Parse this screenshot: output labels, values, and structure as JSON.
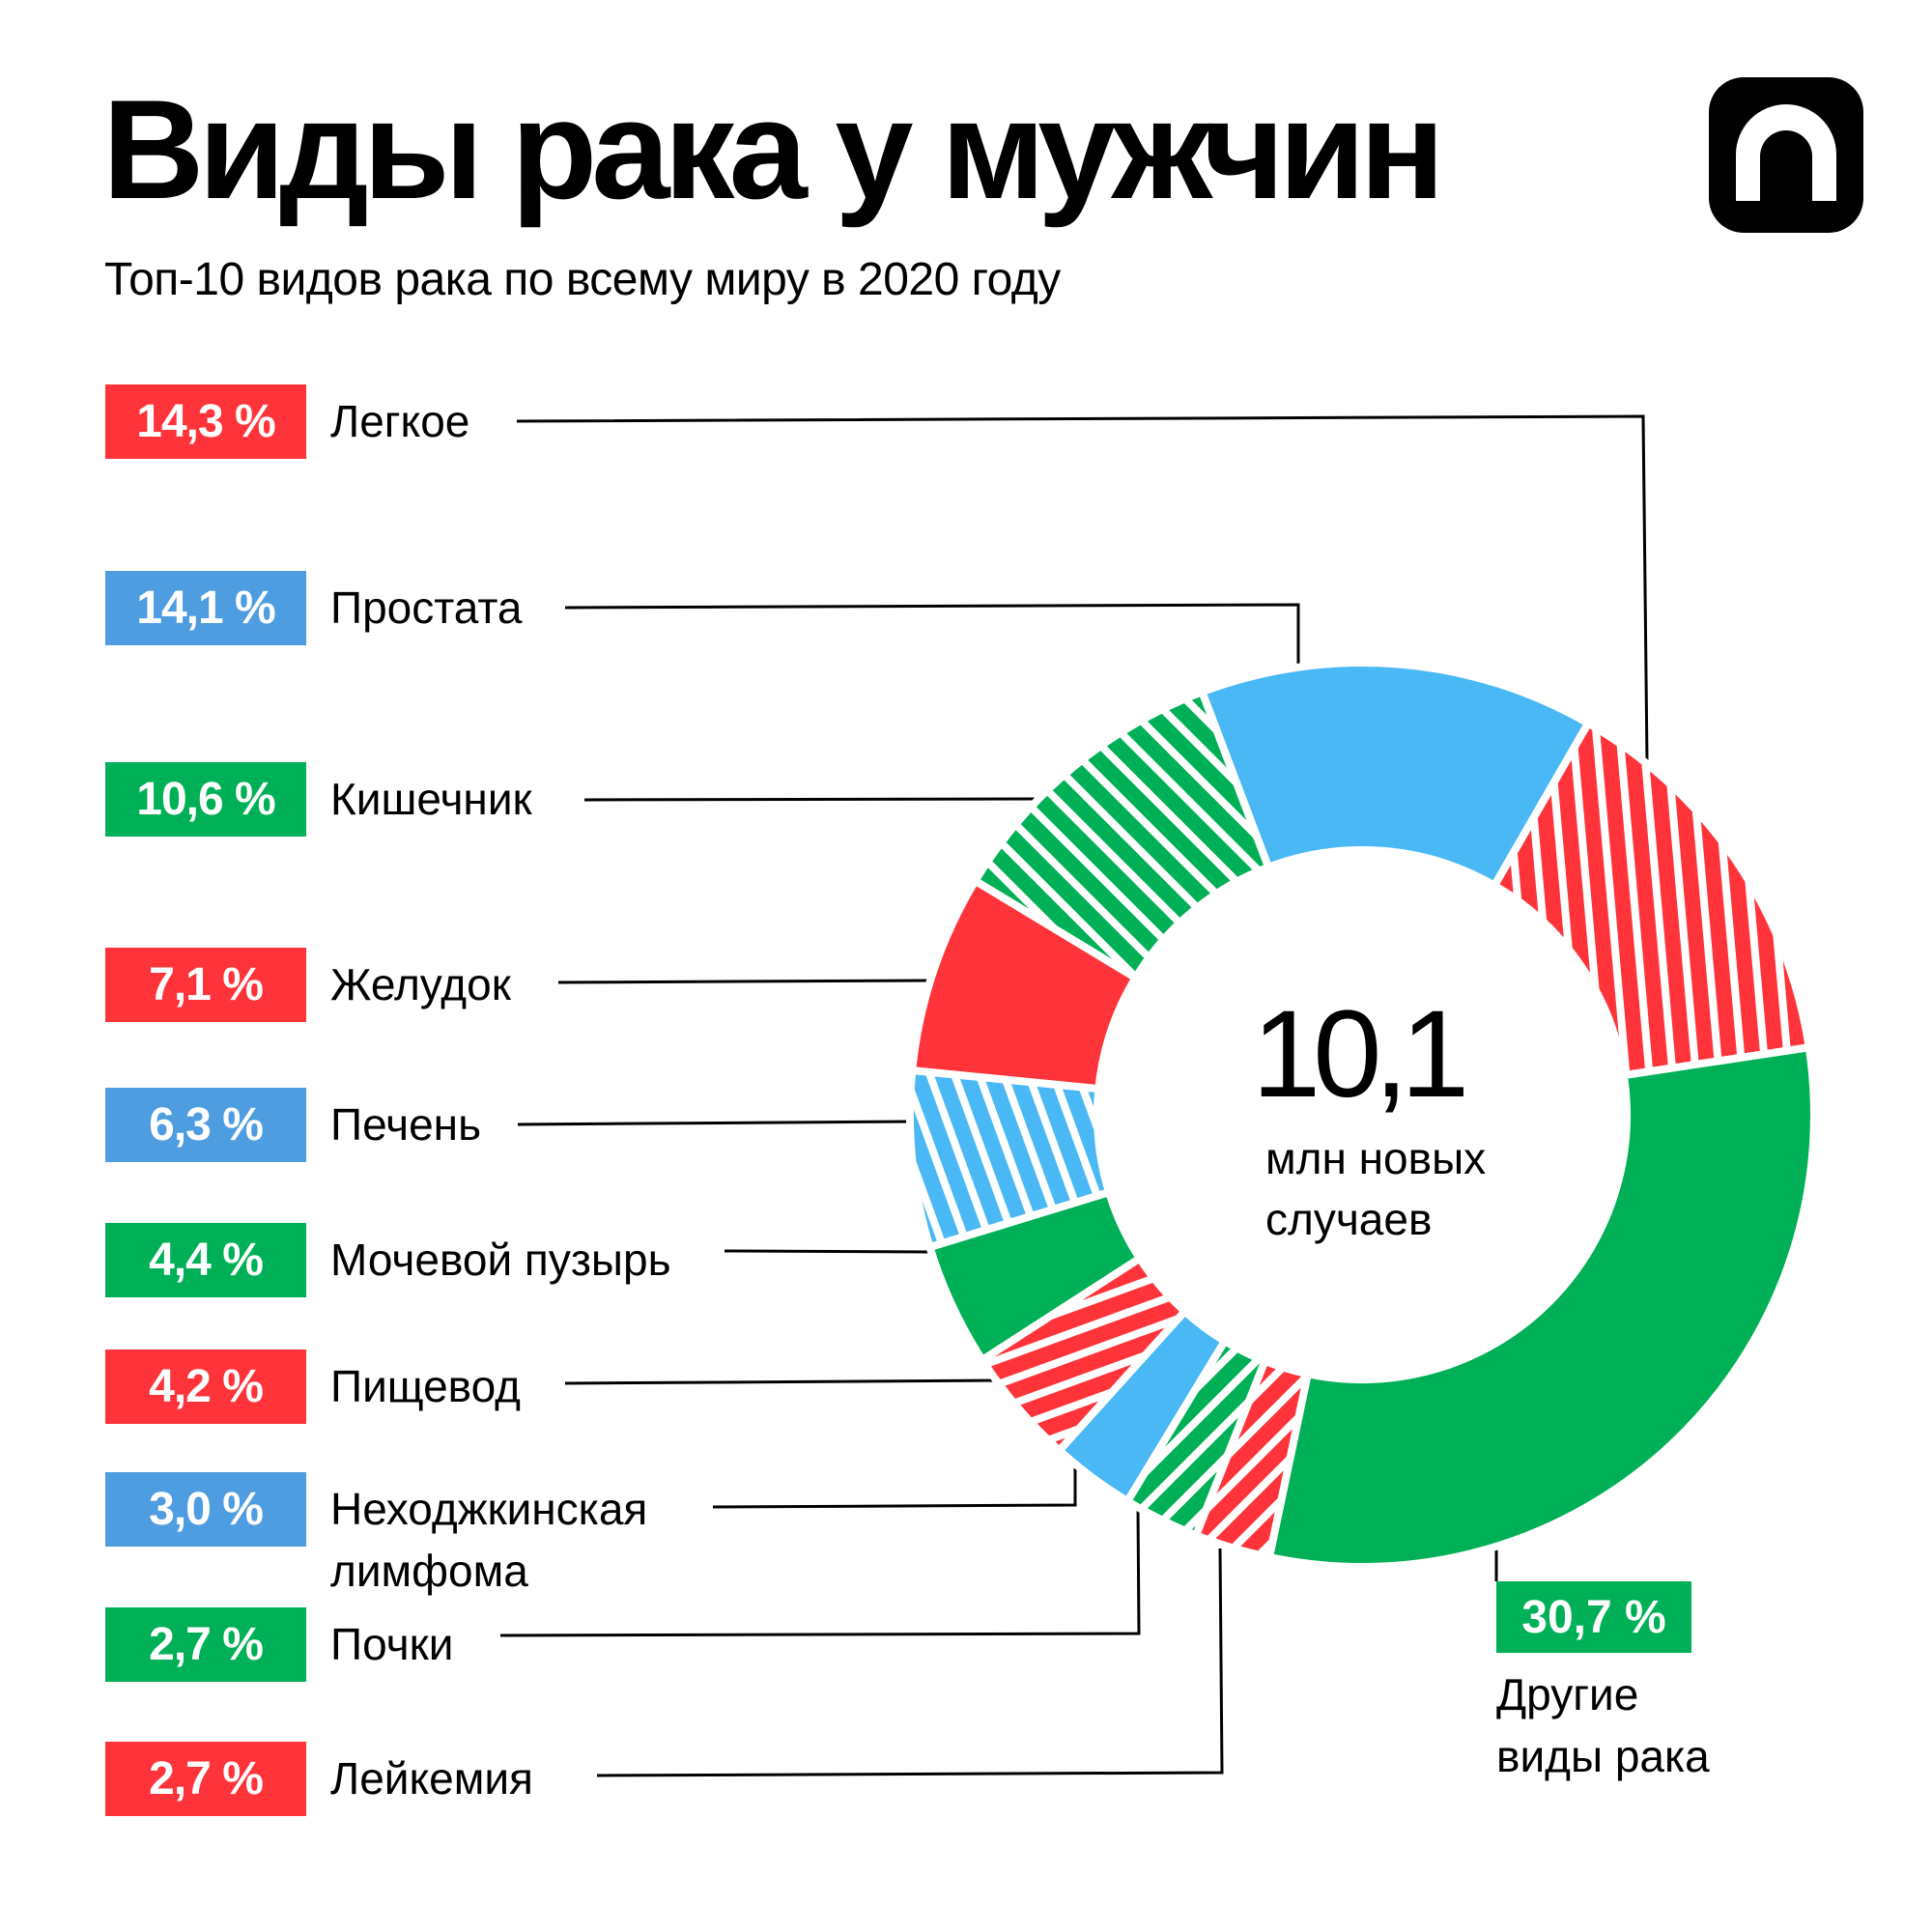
{
  "header": {
    "title": "Виды рака у мужчин",
    "subtitle": "Топ-10 видов рака по всему миру в 2020 году",
    "logo_icon": "arch-n-logo-icon"
  },
  "colors": {
    "red": "#ff343a",
    "blue": "#4ab8f5",
    "badge_blue": "#4f9de1",
    "green": "#00b057"
  },
  "center": {
    "value": "10,1",
    "caption_line1": "млн новых",
    "caption_line2": "случаев"
  },
  "legend": [
    {
      "badge": "14,3 %",
      "label": "Легкое",
      "color": "#ff343a"
    },
    {
      "badge": "14,1 %",
      "label": "Простата",
      "color": "#4f9de1"
    },
    {
      "badge": "10,6 %",
      "label": "Кишечник",
      "color": "#00b057"
    },
    {
      "badge": "7,1 %",
      "label": "Желудок",
      "color": "#ff343a"
    },
    {
      "badge": "6,3 %",
      "label": "Печень",
      "color": "#4f9de1"
    },
    {
      "badge": "4,4 %",
      "label": "Мочевой пузырь",
      "color": "#00b057"
    },
    {
      "badge": "4,2 %",
      "label": "Пищевод",
      "color": "#ff343a"
    },
    {
      "badge": "3,0 %",
      "label": "Неходжкинская лимфома",
      "label_line1": "Неходжкинская",
      "label_line2": "лимфома",
      "color": "#4f9de1"
    },
    {
      "badge": "2,7 %",
      "label": "Почки",
      "color": "#00b057"
    },
    {
      "badge": "2,7 %",
      "label": "Лейкемия",
      "color": "#ff343a"
    }
  ],
  "others": {
    "badge": "30,7 %",
    "label_line1": "Другие",
    "label_line2": "виды рака"
  },
  "chart_data": {
    "type": "pie",
    "variant": "donut",
    "title": "Виды рака у мужчин",
    "subtitle": "Топ-10 видов рака по всему миру в 2020 году",
    "center_text": "10,1 млн новых случаев",
    "order": "clockwise, starting at about 1 o'clock",
    "categories": [
      "Легкое",
      "Другие виды рака",
      "Лейкемия",
      "Почки",
      "Неходжкинская лимфома",
      "Пищевод",
      "Мочевой пузырь",
      "Печень",
      "Желудок",
      "Кишечник",
      "Простата"
    ],
    "values": [
      14.3,
      30.7,
      2.7,
      2.7,
      3.0,
      4.2,
      4.4,
      6.3,
      7.1,
      10.6,
      14.1
    ],
    "unit": "%",
    "segment_colors": [
      "#ff343a",
      "#00b057",
      "#ff343a",
      "#00b057",
      "#4ab8f5",
      "#ff343a",
      "#00b057",
      "#4ab8f5",
      "#ff343a",
      "#00b057",
      "#4ab8f5"
    ],
    "hatched": [
      true,
      false,
      true,
      true,
      false,
      true,
      false,
      true,
      false,
      true,
      false
    ],
    "hatch_angles": [
      -5,
      0,
      45,
      45,
      0,
      70,
      0,
      -20,
      0,
      -45,
      0
    ]
  }
}
